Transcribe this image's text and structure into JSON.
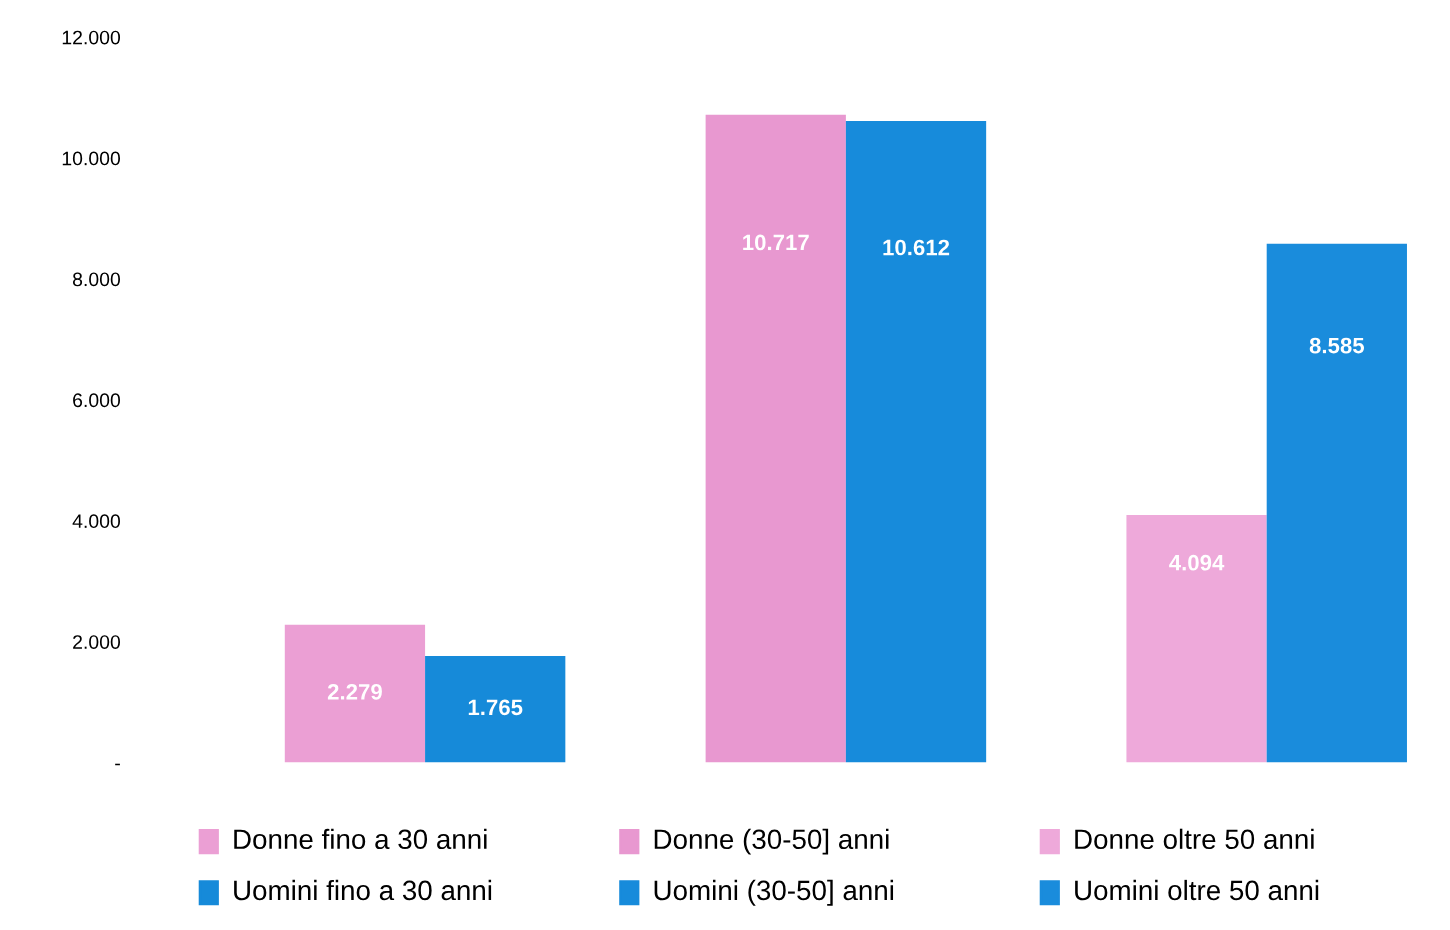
{
  "chart_data": {
    "type": "bar",
    "categories": [
      null,
      null,
      null,
      null,
      null,
      null
    ],
    "values": [
      2279,
      1765,
      10717,
      10612,
      4094,
      8585
    ],
    "colors": [
      "#eb9fd4",
      "#168ad9",
      "#e898d0",
      "#178bdb",
      "#eea9da",
      "#1a8cdc"
    ],
    "value_labels": [
      "2.279",
      "1.765",
      "10.717",
      "10.612",
      "4.094",
      "8.585"
    ],
    "annotations": [
      "Donne fino a 30 anni",
      "Uomini fino a 30 anni",
      "Donne (30-50] anni",
      "Uomini (30-50] anni",
      "Donne oltre 50 anni",
      "Uomini oltre 50 anni"
    ],
    "ylim": [
      0,
      12000
    ],
    "yticks": [
      {
        "value": 0,
        "label": "-"
      },
      {
        "value": 2000,
        "label": "2.000"
      },
      {
        "value": 4000,
        "label": "4.000"
      },
      {
        "value": 6000,
        "label": "6.000"
      },
      {
        "value": 8000,
        "label": "8.000"
      },
      {
        "value": 10000,
        "label": "10.000"
      },
      {
        "value": 12000,
        "label": "12.000"
      }
    ],
    "tick_labels": "y",
    "grid": false
  }
}
